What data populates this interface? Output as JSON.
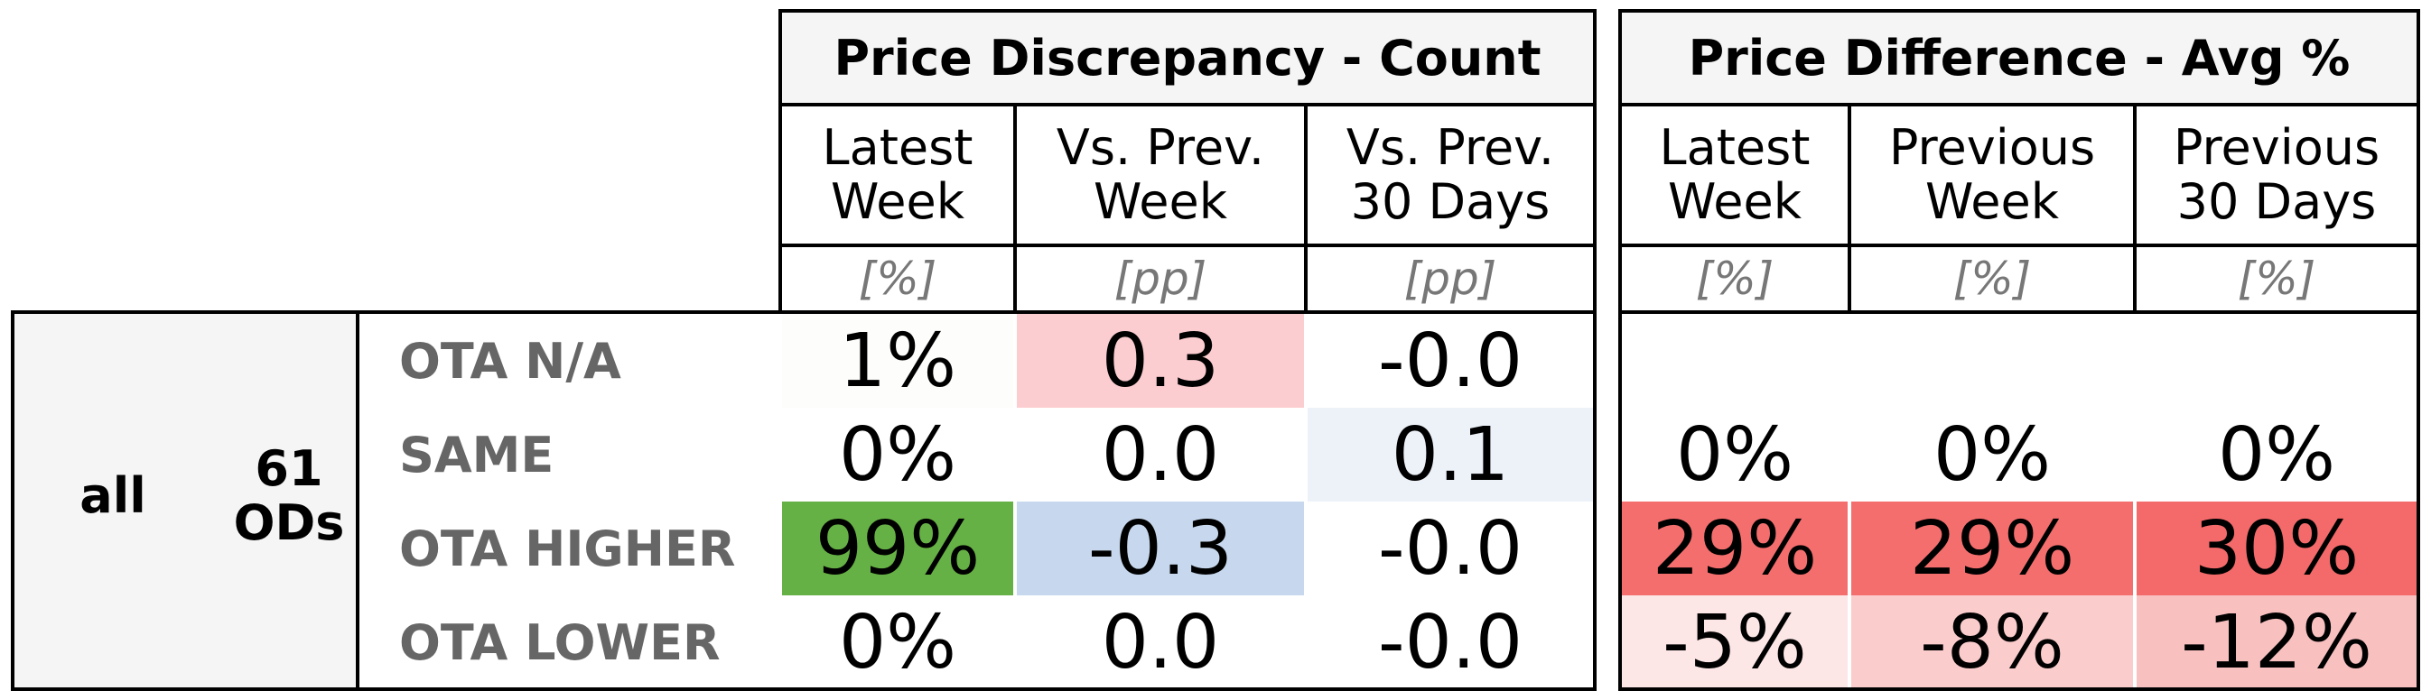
{
  "group": {
    "label": "all",
    "count": "61\nODs"
  },
  "rows": [
    {
      "label": "OTA N/A"
    },
    {
      "label": "SAME"
    },
    {
      "label": "OTA HIGHER"
    },
    {
      "label": "OTA LOWER"
    }
  ],
  "discrepancy": {
    "title": "Price Discrepancy - Count",
    "cols": [
      {
        "label": "Latest\nWeek",
        "unit": "[%]"
      },
      {
        "label": "Vs. Prev.\nWeek",
        "unit": "[pp]"
      },
      {
        "label": "Vs. Prev.\n30 Days",
        "unit": "[pp]"
      }
    ],
    "values": [
      [
        "1%",
        "0.3",
        "-0.0"
      ],
      [
        "0%",
        "0.0",
        "0.1"
      ],
      [
        "99%",
        "-0.3",
        "-0.0"
      ],
      [
        "0%",
        "0.0",
        "-0.0"
      ]
    ],
    "colors": [
      [
        "#fdfdfb",
        "#fccdd0",
        "#ffffff"
      ],
      [
        "#ffffff",
        "#ffffff",
        "#edf2f9"
      ],
      [
        "#66b145",
        "#c7d8ee",
        "#ffffff"
      ],
      [
        "#ffffff",
        "#ffffff",
        "#ffffff"
      ]
    ]
  },
  "difference": {
    "title": "Price Difference - Avg %",
    "cols": [
      {
        "label": "Latest\nWeek",
        "unit": "[%]"
      },
      {
        "label": "Previous\nWeek",
        "unit": "[%]"
      },
      {
        "label": "Previous\n30 Days",
        "unit": "[%]"
      }
    ],
    "values": [
      [
        "",
        "",
        ""
      ],
      [
        "0%",
        "0%",
        "0%"
      ],
      [
        "29%",
        "29%",
        "30%"
      ],
      [
        "-5%",
        "-8%",
        "-12%"
      ]
    ],
    "colors": [
      [
        "#ffffff",
        "#ffffff",
        "#ffffff"
      ],
      [
        "#ffffff",
        "#ffffff",
        "#ffffff"
      ],
      [
        "#f56e6e",
        "#f56e6e",
        "#f46a6a"
      ],
      [
        "#fde6e6",
        "#fbcccc",
        "#f9c0c0"
      ]
    ]
  }
}
